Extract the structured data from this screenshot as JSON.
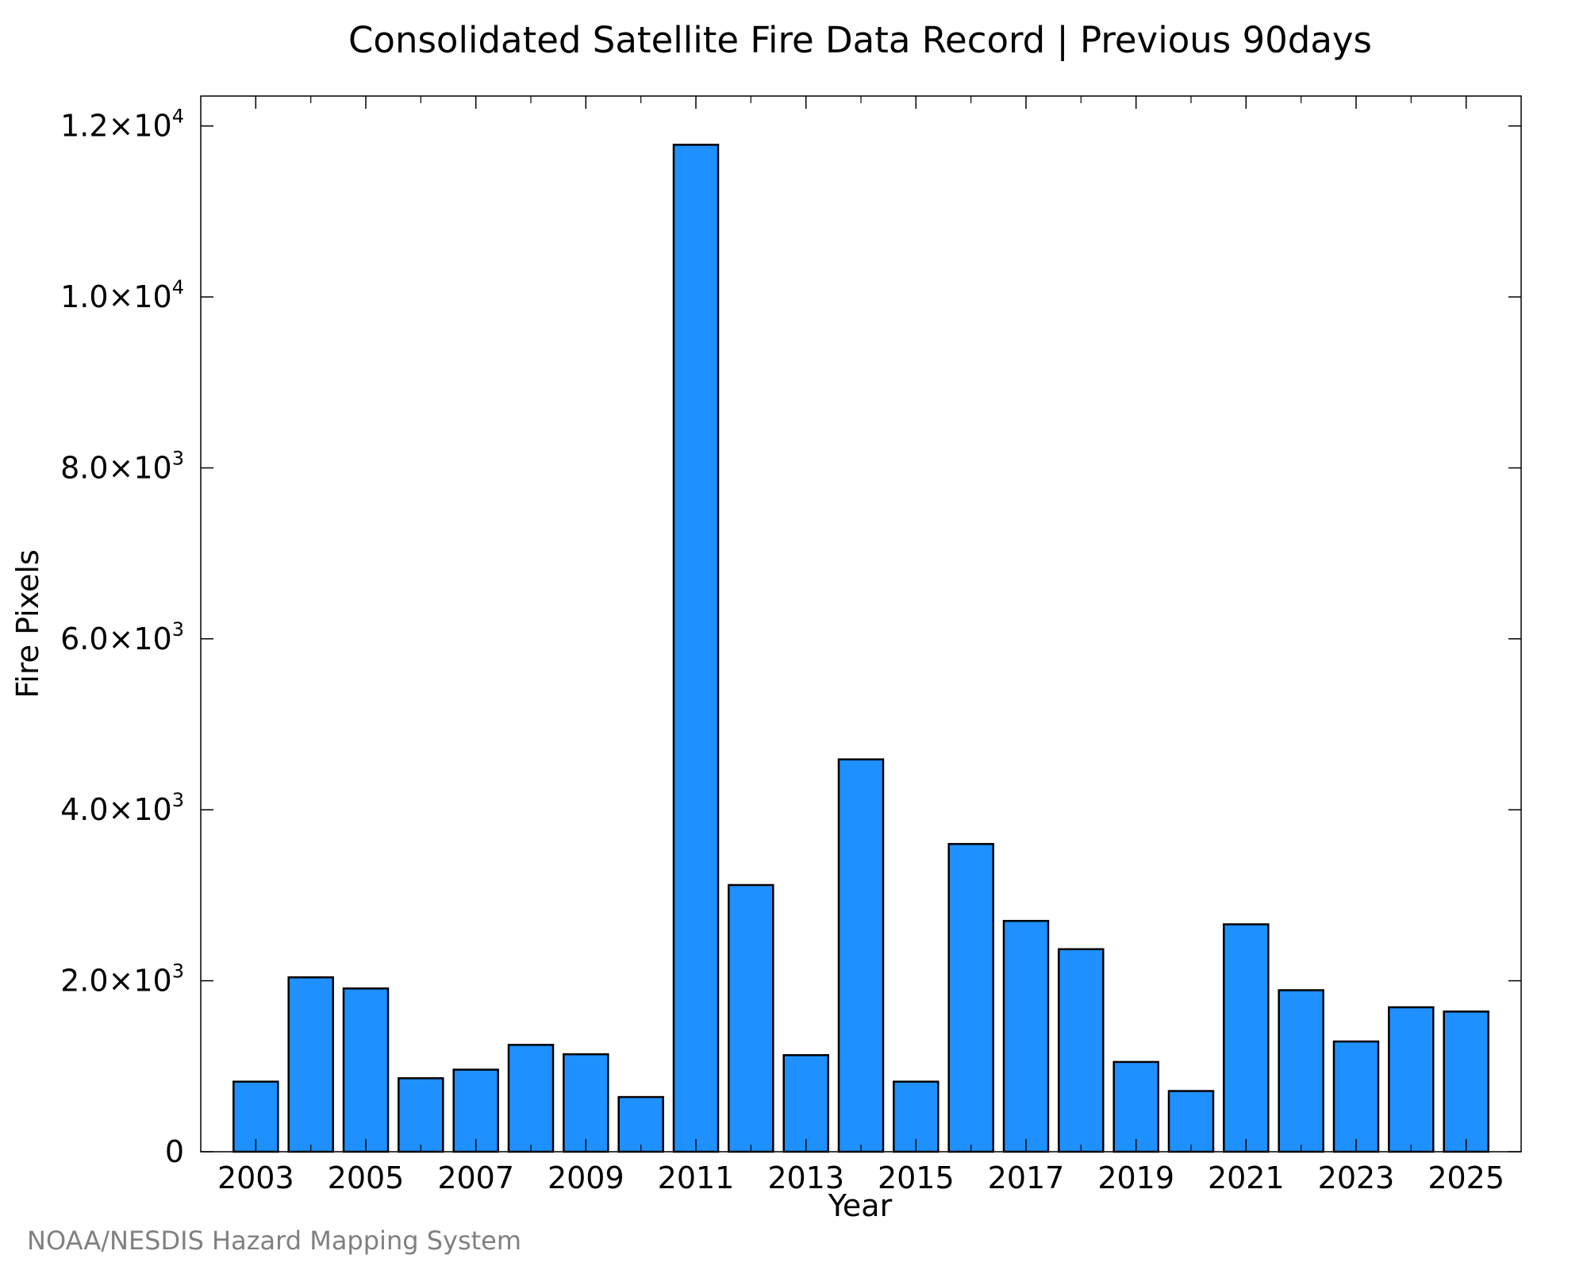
{
  "chart_data": {
    "type": "bar",
    "title": "Consolidated Satellite Fire Data Record | Previous 90days",
    "xlabel": "Year",
    "ylabel": "Fire Pixels",
    "x": [
      2003,
      2004,
      2005,
      2006,
      2007,
      2008,
      2009,
      2010,
      2011,
      2012,
      2013,
      2014,
      2015,
      2016,
      2017,
      2018,
      2019,
      2020,
      2021,
      2022,
      2023,
      2024,
      2025
    ],
    "values": [
      820,
      2040,
      1910,
      860,
      960,
      1250,
      1140,
      640,
      11780,
      3120,
      1130,
      4590,
      820,
      3600,
      2700,
      2370,
      1050,
      710,
      2660,
      1890,
      1290,
      1690,
      1640
    ],
    "xlim": [
      2002,
      2026
    ],
    "ylim": [
      0,
      12350
    ],
    "x_tick_labels": [
      "2003",
      "2005",
      "2007",
      "2009",
      "2011",
      "2013",
      "2015",
      "2017",
      "2019",
      "2021",
      "2023",
      "2025"
    ],
    "x_tick_values": [
      2003,
      2005,
      2007,
      2009,
      2011,
      2013,
      2015,
      2017,
      2019,
      2021,
      2023,
      2025
    ],
    "y_ticks": [
      {
        "value": 0,
        "mantissa": "0",
        "exponent": ""
      },
      {
        "value": 2000,
        "mantissa": "2.0×10",
        "exponent": "3"
      },
      {
        "value": 4000,
        "mantissa": "4.0×10",
        "exponent": "3"
      },
      {
        "value": 6000,
        "mantissa": "6.0×10",
        "exponent": "3"
      },
      {
        "value": 8000,
        "mantissa": "8.0×10",
        "exponent": "3"
      },
      {
        "value": 10000,
        "mantissa": "1.0×10",
        "exponent": "4"
      },
      {
        "value": 12000,
        "mantissa": "1.2×10",
        "exponent": "4"
      }
    ],
    "grid": false,
    "legend": "none",
    "bar_color": "#1E90FF",
    "bar_edge_color": "#000000",
    "credit": "NOAA/NESDIS Hazard Mapping System",
    "credit_color": "#808080"
  }
}
